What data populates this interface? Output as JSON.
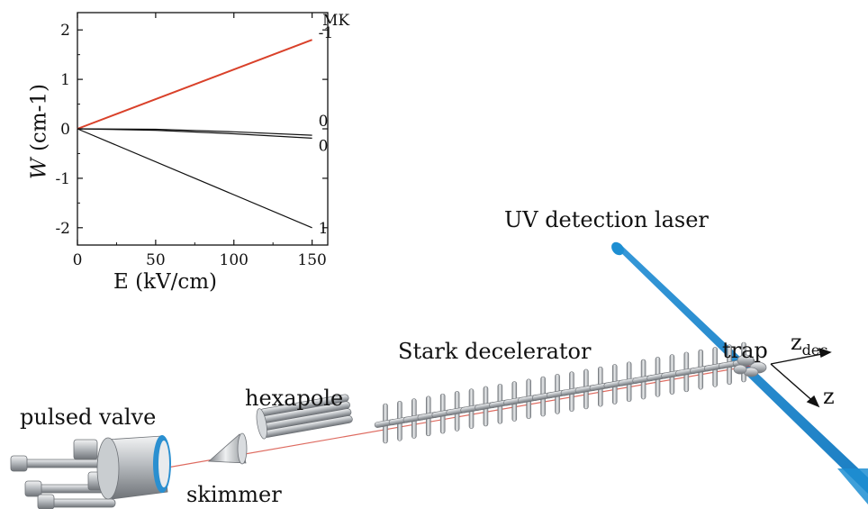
{
  "labels": {
    "uv_laser": "UV detection laser",
    "trap": "trap",
    "stark_decelerator": "Stark decelerator",
    "hexapole": "hexapole",
    "pulsed_valve": "pulsed valve",
    "skimmer": "skimmer",
    "z_dec_main": "z",
    "z_dec_sub": "dec",
    "z": "z"
  },
  "chart_data": {
    "type": "line",
    "xlabel": "E (kV/cm)",
    "ylabel_italic": "W",
    "ylabel_rest": " (cm-1)",
    "xlim": [
      0,
      160
    ],
    "ylim": [
      -2.35,
      2.35
    ],
    "xticks": [
      0,
      50,
      100,
      150
    ],
    "yticks": [
      2,
      1,
      0,
      -1,
      -2
    ],
    "ytick_labels": [
      "2",
      "1",
      "0",
      "-1",
      "-2"
    ],
    "legend_title": "MK",
    "grid": false,
    "series": [
      {
        "label": "-1",
        "color": "#d9412a",
        "x": [
          0,
          150
        ],
        "y": [
          0,
          1.8
        ]
      },
      {
        "label": "0",
        "color": "#111111",
        "x": [
          0,
          50,
          100,
          150
        ],
        "y": [
          0,
          -0.01,
          -0.06,
          -0.13
        ]
      },
      {
        "label": "0",
        "color": "#111111",
        "x": [
          0,
          50,
          100,
          150
        ],
        "y": [
          0,
          -0.03,
          -0.1,
          -0.19
        ]
      },
      {
        "label": "1",
        "color": "#111111",
        "x": [
          0,
          150
        ],
        "y": [
          0,
          -2.0
        ]
      }
    ]
  },
  "colors": {
    "laser": "#1d8ed2",
    "metal_light": "#e6e8ea",
    "metal_mid": "#a9adb2",
    "metal_dark": "#6d7176",
    "valve_ring": "#2a8fd0",
    "beam": "#d33a2c"
  }
}
